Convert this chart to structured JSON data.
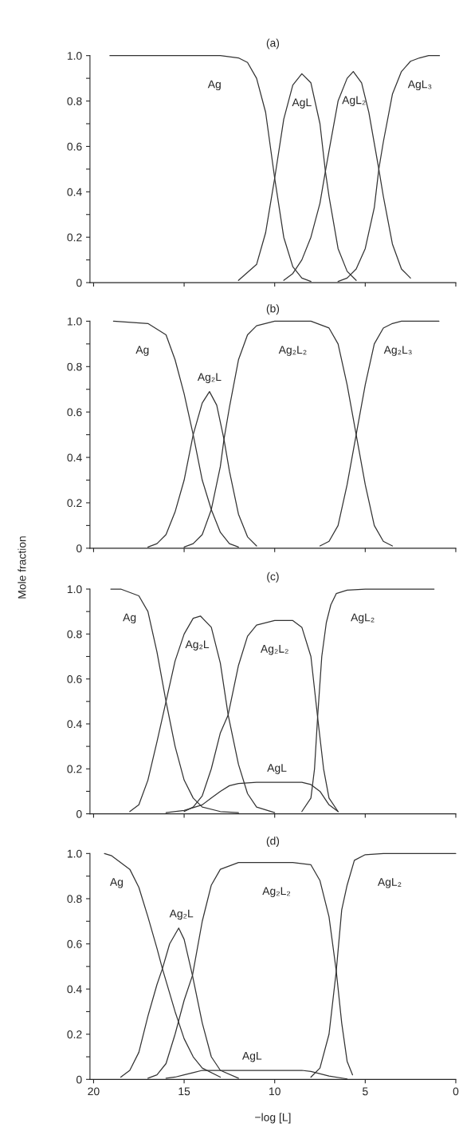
{
  "chart_data": [
    {
      "type": "line",
      "title": "(a)",
      "xlim": [
        20.2,
        0
      ],
      "xticks": [
        20,
        15,
        10,
        5,
        0
      ],
      "ylim": [
        0,
        1
      ],
      "yticks": [
        0,
        {
          "value": 0.1,
          "label": null
        },
        0.2,
        {
          "value": 0.3,
          "label": null
        },
        0.4,
        {
          "value": 0.5,
          "label": null
        },
        0.6,
        {
          "value": 0.7,
          "label": null
        },
        0.8,
        {
          "value": 0.9,
          "label": null
        },
        {
          "value": 1,
          "label": "1.0"
        }
      ],
      "tick_labels": "y",
      "grid": false,
      "legend": false,
      "marker": "none",
      "line_style": "solid",
      "series": [
        {
          "name": "Ag",
          "color": "#333333",
          "x": [
            19.1,
            13,
            12,
            11.5,
            11,
            10.5,
            10,
            9.5,
            9,
            8.5,
            8
          ],
          "values": [
            1,
            1,
            0.99,
            0.97,
            0.9,
            0.75,
            0.46,
            0.2,
            0.07,
            0.02,
            0.005
          ]
        },
        {
          "name": "AgL",
          "color": "#333333",
          "x": [
            12,
            11,
            10.5,
            10,
            9.5,
            9,
            8.5,
            8,
            7.5,
            7.2,
            7,
            6.5,
            6,
            5.5
          ],
          "values": [
            0.01,
            0.08,
            0.22,
            0.46,
            0.72,
            0.87,
            0.92,
            0.88,
            0.7,
            0.49,
            0.38,
            0.15,
            0.05,
            0.01
          ]
        },
        {
          "name": "AgL₂",
          "color": "#333333",
          "x": [
            9.5,
            9,
            8.5,
            8,
            7.5,
            7.2,
            7,
            6.5,
            6,
            5.66,
            5.2,
            4.8,
            4.25,
            4,
            3.5,
            3,
            2.5
          ],
          "values": [
            0.01,
            0.04,
            0.1,
            0.2,
            0.35,
            0.49,
            0.58,
            0.8,
            0.9,
            0.93,
            0.88,
            0.75,
            0.5,
            0.38,
            0.17,
            0.06,
            0.02
          ]
        },
        {
          "name": "AgL₃",
          "color": "#333333",
          "x": [
            6.5,
            6,
            5.5,
            5,
            4.5,
            4.25,
            4,
            3.5,
            3,
            2.5,
            2,
            1.5,
            0.9
          ],
          "values": [
            0.005,
            0.02,
            0.06,
            0.15,
            0.33,
            0.5,
            0.62,
            0.83,
            0.93,
            0.975,
            0.99,
            1,
            1
          ]
        }
      ]
    },
    {
      "type": "line",
      "title": "(b)",
      "ylabel": "Mole fraction",
      "xlim": [
        20.2,
        0
      ],
      "xticks": [
        20,
        15,
        10,
        5,
        0
      ],
      "ylim": [
        0,
        1
      ],
      "yticks": [
        0,
        {
          "value": 0.1,
          "label": null
        },
        0.2,
        {
          "value": 0.3,
          "label": null
        },
        0.4,
        {
          "value": 0.5,
          "label": null
        },
        0.6,
        {
          "value": 0.7,
          "label": null
        },
        0.8,
        {
          "value": 0.9,
          "label": null
        },
        {
          "value": 1,
          "label": "1.0"
        }
      ],
      "tick_labels": "y",
      "grid": false,
      "legend": false,
      "marker": "none",
      "line_style": "solid",
      "series": [
        {
          "name": "Ag",
          "color": "#333333",
          "x": [
            18.9,
            17,
            16,
            15.5,
            15,
            14.5,
            14,
            13.5,
            13,
            12.5,
            12
          ],
          "values": [
            1,
            0.99,
            0.94,
            0.83,
            0.68,
            0.5,
            0.3,
            0.17,
            0.07,
            0.02,
            0.005
          ]
        },
        {
          "name": "Ag₂L",
          "color": "#333333",
          "x": [
            17,
            16.5,
            16,
            15.5,
            15,
            14.5,
            14,
            13.6,
            13.2,
            12.8,
            12.5,
            12,
            11.5,
            11
          ],
          "values": [
            0.005,
            0.02,
            0.06,
            0.16,
            0.3,
            0.5,
            0.64,
            0.69,
            0.63,
            0.48,
            0.34,
            0.15,
            0.05,
            0.01
          ]
        },
        {
          "name": "Ag₂L₂",
          "color": "#333333",
          "x": [
            15,
            14.5,
            14,
            13.5,
            13,
            12.8,
            12.5,
            12,
            11.5,
            11,
            10,
            8,
            7,
            6.5,
            6,
            5.5,
            5,
            4.5,
            4,
            3.5
          ],
          "values": [
            0.005,
            0.02,
            0.06,
            0.17,
            0.36,
            0.48,
            0.62,
            0.83,
            0.94,
            0.98,
            1,
            1,
            0.97,
            0.9,
            0.72,
            0.5,
            0.28,
            0.1,
            0.03,
            0.01
          ]
        },
        {
          "name": "Ag₂L₃",
          "color": "#333333",
          "x": [
            7.5,
            7,
            6.5,
            6,
            5.5,
            5,
            4.5,
            4,
            3.5,
            3,
            0.93
          ],
          "values": [
            0.01,
            0.03,
            0.1,
            0.28,
            0.5,
            0.72,
            0.9,
            0.97,
            0.99,
            1,
            1
          ]
        }
      ]
    },
    {
      "type": "line",
      "title": "(c)",
      "xlim": [
        20.2,
        0
      ],
      "xticks": [
        20,
        15,
        10,
        5,
        0
      ],
      "ylim": [
        0,
        1
      ],
      "yticks": [
        0,
        {
          "value": 0.1,
          "label": null
        },
        0.2,
        {
          "value": 0.3,
          "label": null
        },
        0.4,
        {
          "value": 0.5,
          "label": null
        },
        0.6,
        {
          "value": 0.7,
          "label": null
        },
        0.8,
        {
          "value": 0.9,
          "label": null
        },
        {
          "value": 1,
          "label": "1.0"
        }
      ],
      "tick_labels": "y",
      "grid": false,
      "legend": false,
      "marker": "none",
      "line_style": "solid",
      "series": [
        {
          "name": "Ag",
          "color": "#333333",
          "x": [
            19.05,
            18.5,
            17.5,
            17,
            16.5,
            16,
            15.5,
            15,
            14.5,
            14,
            13,
            12
          ],
          "values": [
            1,
            1,
            0.97,
            0.9,
            0.72,
            0.5,
            0.3,
            0.15,
            0.07,
            0.03,
            0.01,
            0.005
          ]
        },
        {
          "name": "Ag₂L",
          "color": "#333333",
          "x": [
            18,
            17.5,
            17,
            16.5,
            16,
            15.5,
            15,
            14.5,
            14.1,
            13.5,
            13,
            12.57,
            12,
            11.5,
            11,
            10
          ],
          "values": [
            0.01,
            0.04,
            0.15,
            0.32,
            0.5,
            0.68,
            0.8,
            0.87,
            0.88,
            0.83,
            0.67,
            0.44,
            0.22,
            0.09,
            0.03,
            0.005
          ]
        },
        {
          "name": "Ag₂L₂",
          "color": "#333333",
          "x": [
            15,
            14.5,
            14,
            13.5,
            13,
            12.57,
            12,
            11.5,
            11,
            10,
            9,
            8.5,
            8,
            7.63,
            7.3,
            7,
            6.5
          ],
          "values": [
            0.01,
            0.03,
            0.08,
            0.2,
            0.36,
            0.44,
            0.66,
            0.79,
            0.84,
            0.86,
            0.86,
            0.83,
            0.7,
            0.43,
            0.2,
            0.07,
            0.01
          ]
        },
        {
          "name": "AgL",
          "color": "#333333",
          "x": [
            16,
            15,
            14,
            13.5,
            13,
            12.5,
            12,
            11,
            8.5,
            8,
            7.5,
            7,
            6.5
          ],
          "values": [
            0.005,
            0.015,
            0.04,
            0.07,
            0.1,
            0.125,
            0.135,
            0.14,
            0.14,
            0.13,
            0.1,
            0.04,
            0.01
          ]
        },
        {
          "name": "AgL₂",
          "color": "#333333",
          "x": [
            8.5,
            8,
            7.8,
            7.63,
            7.4,
            7.15,
            6.9,
            6.6,
            6,
            5,
            1.2
          ],
          "values": [
            0.01,
            0.07,
            0.2,
            0.43,
            0.7,
            0.85,
            0.93,
            0.98,
            0.995,
            1,
            1
          ]
        }
      ]
    },
    {
      "type": "line",
      "title": "(d)",
      "xlabel": "−log [L]",
      "xlim": [
        20.2,
        0
      ],
      "xticks": [
        20,
        15,
        10,
        5,
        0
      ],
      "ylim": [
        0,
        1
      ],
      "yticks": [
        0,
        {
          "value": 0.1,
          "label": null
        },
        0.2,
        {
          "value": 0.3,
          "label": null
        },
        0.4,
        {
          "value": 0.5,
          "label": null
        },
        0.6,
        {
          "value": 0.7,
          "label": null
        },
        0.8,
        {
          "value": 0.9,
          "label": null
        },
        {
          "value": 1,
          "label": "1.0"
        }
      ],
      "grid": false,
      "legend": false,
      "marker": "none",
      "line_style": "solid",
      "series": [
        {
          "name": "Ag",
          "color": "#333333",
          "x": [
            19.4,
            19,
            18.5,
            18,
            17.5,
            17,
            16.5,
            16.2,
            15.5,
            15,
            14.5,
            14,
            13
          ],
          "values": [
            1,
            0.99,
            0.96,
            0.93,
            0.85,
            0.72,
            0.58,
            0.49,
            0.3,
            0.18,
            0.1,
            0.05,
            0.01
          ]
        },
        {
          "name": "Ag₂L",
          "color": "#333333",
          "x": [
            18.5,
            18,
            17.5,
            17,
            16.5,
            16.2,
            15.8,
            15.3,
            15,
            14.54,
            14,
            13.5,
            13,
            12
          ],
          "values": [
            0.01,
            0.04,
            0.12,
            0.28,
            0.42,
            0.49,
            0.6,
            0.67,
            0.62,
            0.46,
            0.25,
            0.1,
            0.04,
            0.005
          ]
        },
        {
          "name": "Ag₂L₂",
          "color": "#333333",
          "x": [
            17,
            16.5,
            16,
            15.5,
            15,
            14.54,
            14,
            13.5,
            13,
            12,
            9,
            8,
            7.5,
            7,
            6.6,
            6.3,
            6,
            5.7
          ],
          "values": [
            0.005,
            0.02,
            0.07,
            0.2,
            0.35,
            0.46,
            0.7,
            0.86,
            0.93,
            0.96,
            0.96,
            0.95,
            0.88,
            0.72,
            0.48,
            0.25,
            0.08,
            0.02
          ]
        },
        {
          "name": "AgL",
          "color": "#333333",
          "x": [
            16,
            15.5,
            15,
            14.5,
            14,
            8.5,
            8,
            7,
            6
          ],
          "values": [
            0.005,
            0.01,
            0.02,
            0.03,
            0.04,
            0.04,
            0.035,
            0.015,
            0.002
          ]
        },
        {
          "name": "AgL₂",
          "color": "#333333",
          "x": [
            8,
            7.5,
            7,
            6.6,
            6.3,
            6,
            5.6,
            5,
            4,
            0
          ],
          "values": [
            0.01,
            0.05,
            0.2,
            0.48,
            0.75,
            0.86,
            0.97,
            0.995,
            1,
            1
          ]
        }
      ]
    }
  ]
}
